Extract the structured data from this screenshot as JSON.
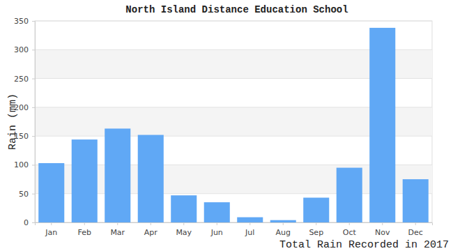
{
  "chart_data": {
    "type": "bar",
    "title": "North Island Distance Education School",
    "x_label": "Total Rain Recorded in 2017",
    "y_label": "Rain (mm)",
    "categories": [
      "Jan",
      "Feb",
      "Mar",
      "Apr",
      "May",
      "Jun",
      "Jul",
      "Aug",
      "Sep",
      "Oct",
      "Nov",
      "Dec"
    ],
    "values": [
      103,
      144,
      163,
      152,
      47,
      35,
      9,
      4,
      43,
      95,
      338,
      75
    ],
    "color": "#60a8f5",
    "ylim": [
      0,
      350
    ],
    "yticks": [
      0,
      50,
      100,
      150,
      200,
      250,
      300,
      350
    ],
    "grid": true
  }
}
